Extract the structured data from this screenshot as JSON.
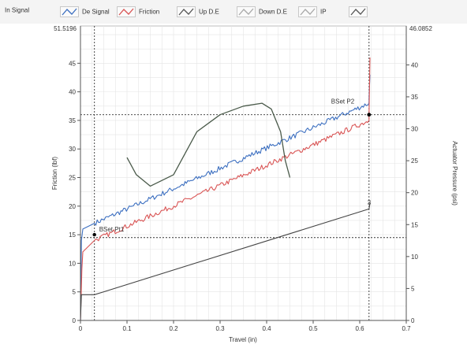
{
  "legend": {
    "items": [
      {
        "label": "In Signal",
        "color": "#4a7ac9",
        "has_swatch": false
      },
      {
        "label": "De Signal",
        "color": "#3c6fc0",
        "has_swatch": true
      },
      {
        "label": "Friction",
        "color": "#d95454",
        "has_swatch": true
      },
      {
        "label": "Up D.E",
        "color": "#555555",
        "has_swatch": true
      },
      {
        "label": "Down D.E",
        "color": "#a8a8a8",
        "has_swatch": true
      },
      {
        "label": "IP",
        "color": "#a8a8a8",
        "has_swatch": true
      },
      {
        "label": "",
        "color": "#555555",
        "has_swatch": true
      }
    ]
  },
  "chart_data": {
    "type": "line",
    "xlabel": "Travel (in)",
    "ylabel_left": "Friction (lbf)",
    "ylabel_right": "Actuator Pressure (psi)",
    "xlim": [
      0,
      0.7
    ],
    "ylim_left": [
      0,
      51.5196
    ],
    "ylim_right": [
      0,
      46.0852
    ],
    "x_ticks": [
      "0",
      "0.1",
      "0.2",
      "0.3",
      "0.4",
      "0.5",
      "0.6",
      "0.7"
    ],
    "y_ticks_left": [
      "0",
      "5",
      "10",
      "15",
      "20",
      "25",
      "30",
      "35",
      "40",
      "45"
    ],
    "y_ticks_right": [
      "0",
      "5",
      "10",
      "15",
      "20",
      "25",
      "30",
      "35",
      "40"
    ],
    "y_left_top_label": "51.5196",
    "y_right_top_label": "46.0852",
    "grid": true,
    "cursors": {
      "x": [
        0.03,
        0.62
      ],
      "y_left": [
        14.5,
        36
      ]
    },
    "annotations": [
      {
        "text": "BSet Pt1",
        "x": 0.03,
        "y": 15
      },
      {
        "text": "BSet P2",
        "x": 0.62,
        "y": 36
      },
      {
        "text": "3",
        "x": 0.62,
        "y": 20
      }
    ],
    "series": [
      {
        "name": "Blue",
        "color": "#3c6fc0",
        "points": [
          [
            0,
            0
          ],
          [
            0.002,
            14
          ],
          [
            0.005,
            16
          ],
          [
            0.03,
            17
          ],
          [
            0.62,
            38
          ],
          [
            0.62,
            39
          ],
          [
            0.622,
            43
          ]
        ]
      },
      {
        "name": "Red",
        "color": "#d95454",
        "points": [
          [
            0,
            0
          ],
          [
            0.003,
            9
          ],
          [
            0.005,
            12
          ],
          [
            0.03,
            14
          ],
          [
            0.62,
            35
          ],
          [
            0.62,
            36
          ],
          [
            0.622,
            46
          ]
        ]
      },
      {
        "name": "Black",
        "color": "#444444",
        "points": [
          [
            0,
            0
          ],
          [
            0.002,
            4.5
          ],
          [
            0.03,
            4.5
          ],
          [
            0.62,
            19.5
          ],
          [
            0.622,
            20.5
          ]
        ]
      },
      {
        "name": "Dark Green",
        "color": "#4a5a4a",
        "points": [
          [
            0.1,
            28.5
          ],
          [
            0.12,
            25.5
          ],
          [
            0.15,
            23.5
          ],
          [
            0.2,
            25.5
          ],
          [
            0.25,
            33
          ],
          [
            0.3,
            36
          ],
          [
            0.35,
            37.5
          ],
          [
            0.39,
            38
          ],
          [
            0.41,
            37
          ],
          [
            0.43,
            33
          ],
          [
            0.44,
            28
          ],
          [
            0.45,
            25
          ]
        ]
      }
    ]
  },
  "colors": {
    "plot_bg": "#ffffff",
    "grid": "#e4e4e4",
    "axis": "#555555",
    "cursor": "#333333",
    "point": "#000000"
  }
}
